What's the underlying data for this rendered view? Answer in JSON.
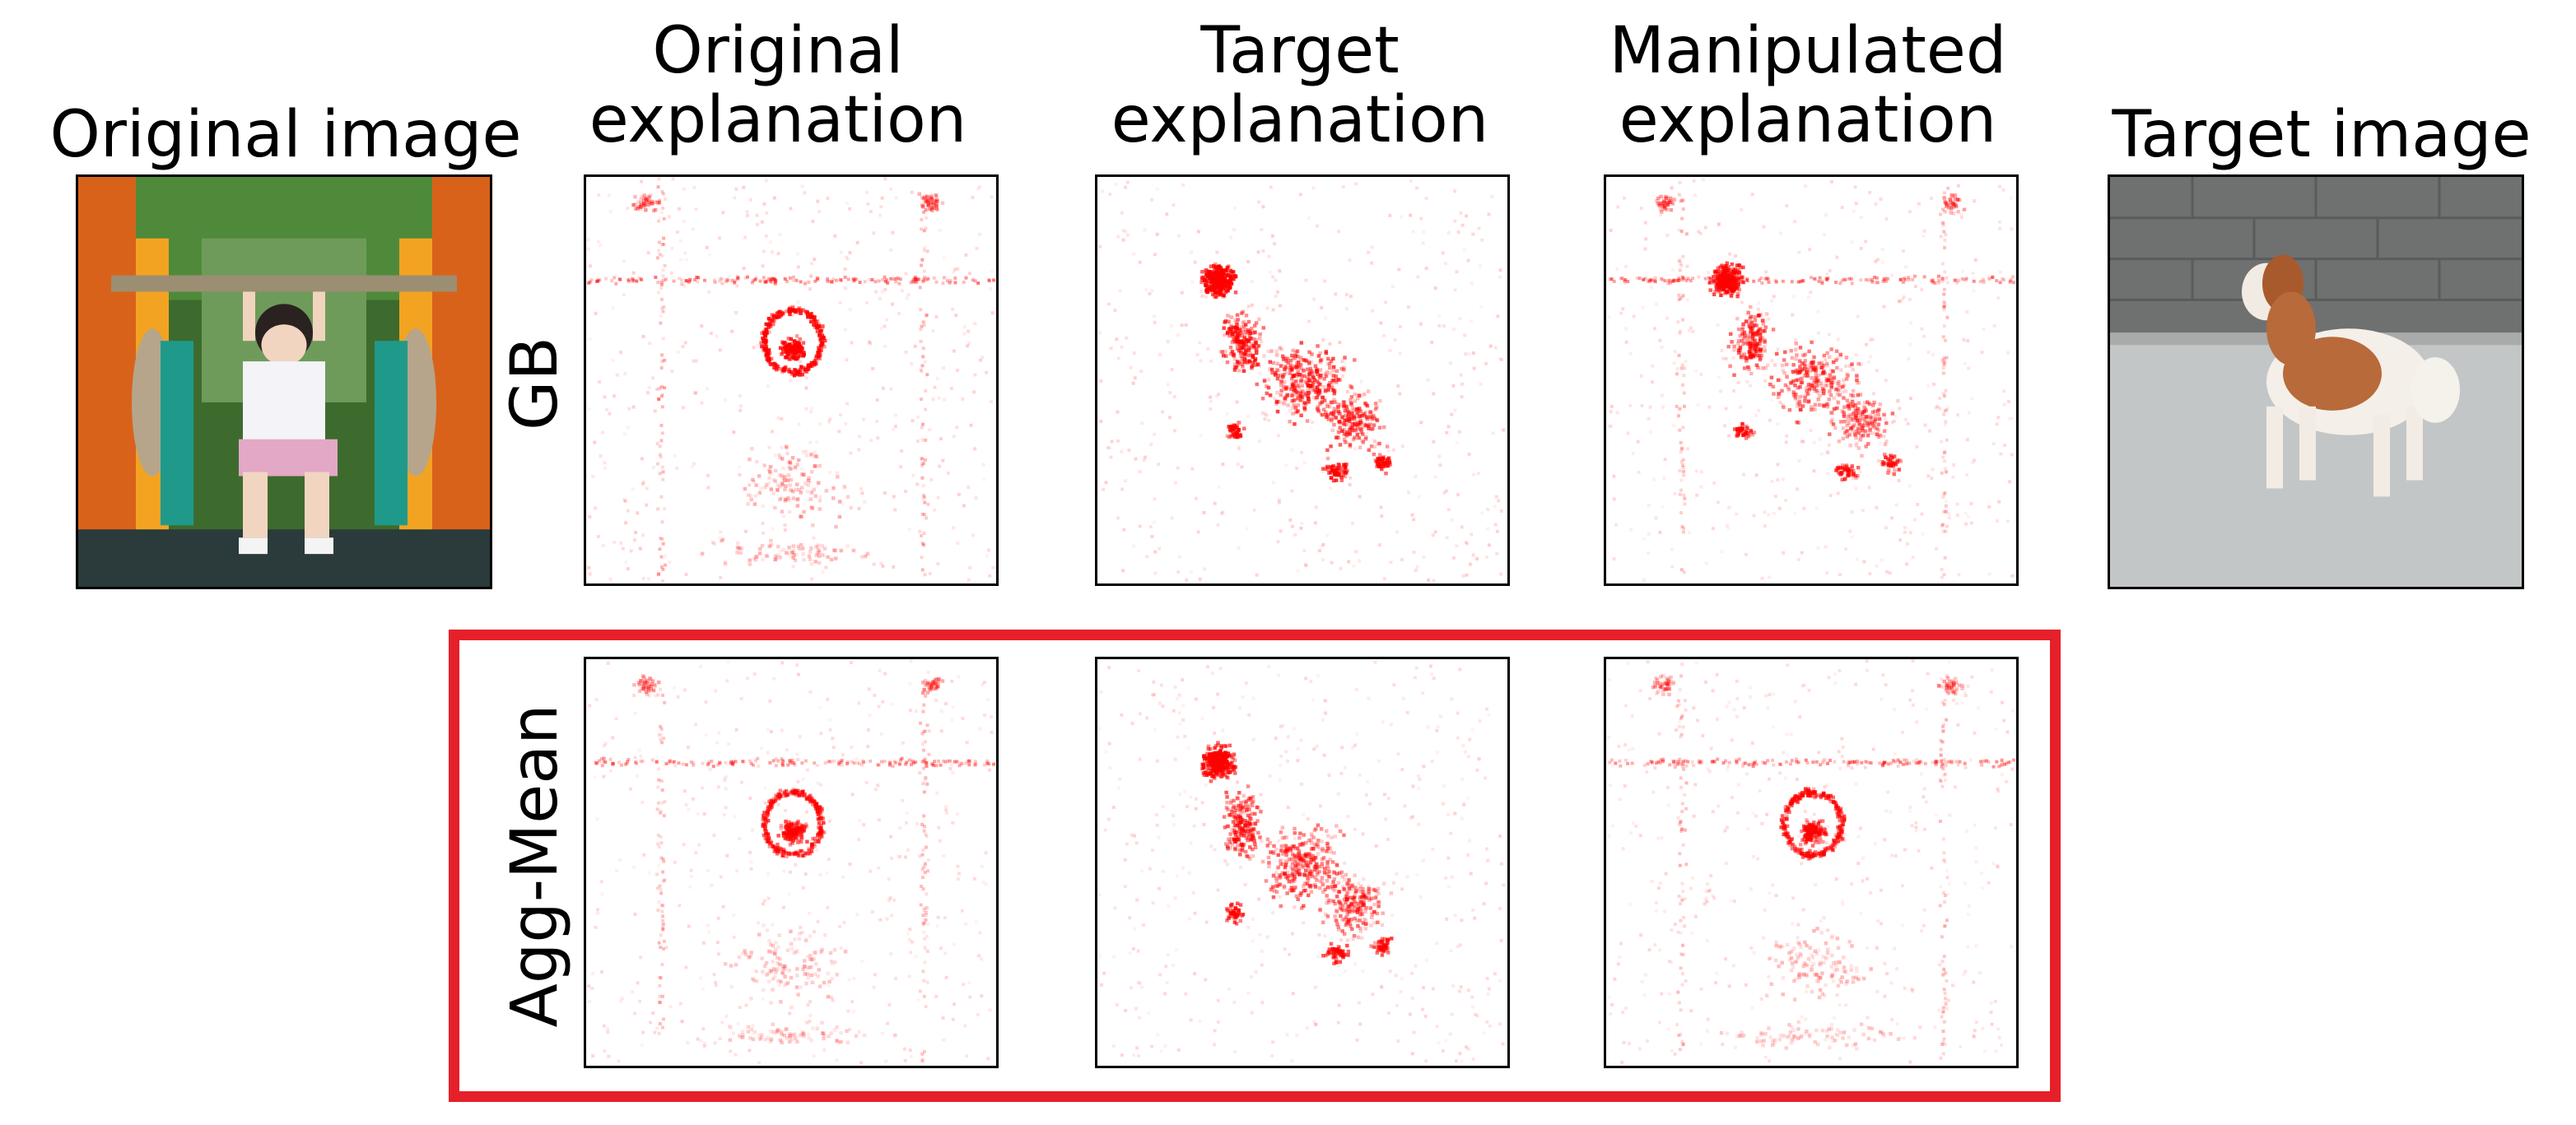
{
  "columns": {
    "original_image": "Original image",
    "original_explanation": "Original\nexplanation",
    "target_explanation": "Target\nexplanation",
    "manipulated_explanation": "Manipulated\nexplanation",
    "target_image": "Target image"
  },
  "rows": {
    "gb": "GB",
    "agg_mean": "Agg-Mean"
  },
  "colors": {
    "heatmap": "#ff0000",
    "highlight_box": "#e5202a"
  }
}
